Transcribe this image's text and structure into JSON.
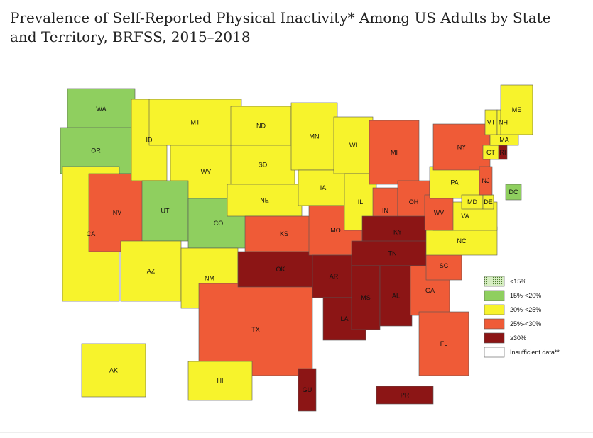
{
  "title": "Prevalence of Self-Reported Physical Inactivity* Among US Adults by State and Territory, BRFSS, 2015–2018",
  "legend": [
    {
      "label": "<15%",
      "color": "#d8efc4",
      "pattern": "dots"
    },
    {
      "label": "15%-<20%",
      "color": "#8fcf5f"
    },
    {
      "label": "20%-<25%",
      "color": "#f7f32c"
    },
    {
      "label": "25%-<30%",
      "color": "#ef5b37"
    },
    {
      "label": "≥30%",
      "color": "#8c1515"
    },
    {
      "label": "Insufficient data**",
      "color": "#ffffff"
    }
  ],
  "states": [
    {
      "label": "WA",
      "legend_index": 1
    },
    {
      "label": "OR",
      "legend_index": 1
    },
    {
      "label": "CA",
      "legend_index": 2
    },
    {
      "label": "NV",
      "legend_index": 3
    },
    {
      "label": "ID",
      "legend_index": 2
    },
    {
      "label": "MT",
      "legend_index": 2
    },
    {
      "label": "WY",
      "legend_index": 2
    },
    {
      "label": "UT",
      "legend_index": 1
    },
    {
      "label": "CO",
      "legend_index": 1
    },
    {
      "label": "AZ",
      "legend_index": 2
    },
    {
      "label": "NM",
      "legend_index": 2
    },
    {
      "label": "ND",
      "legend_index": 2
    },
    {
      "label": "SD",
      "legend_index": 2
    },
    {
      "label": "NE",
      "legend_index": 2
    },
    {
      "label": "KS",
      "legend_index": 3
    },
    {
      "label": "TX",
      "legend_index": 3
    },
    {
      "label": "OK",
      "legend_index": 4
    },
    {
      "label": "MN",
      "legend_index": 2
    },
    {
      "label": "IA",
      "legend_index": 2
    },
    {
      "label": "MO",
      "legend_index": 3
    },
    {
      "label": "AR",
      "legend_index": 4
    },
    {
      "label": "LA",
      "legend_index": 4
    },
    {
      "label": "WI",
      "legend_index": 2
    },
    {
      "label": "IL",
      "legend_index": 2
    },
    {
      "label": "MI",
      "legend_index": 3
    },
    {
      "label": "IN",
      "legend_index": 3
    },
    {
      "label": "OH",
      "legend_index": 3
    },
    {
      "label": "KY",
      "legend_index": 4
    },
    {
      "label": "TN",
      "legend_index": 4
    },
    {
      "label": "MS",
      "legend_index": 4
    },
    {
      "label": "AL",
      "legend_index": 4
    },
    {
      "label": "GA",
      "legend_index": 3
    },
    {
      "label": "FL",
      "legend_index": 3
    },
    {
      "label": "SC",
      "legend_index": 3
    },
    {
      "label": "NC",
      "legend_index": 2
    },
    {
      "label": "VA",
      "legend_index": 2
    },
    {
      "label": "WV",
      "legend_index": 3
    },
    {
      "label": "PA",
      "legend_index": 2
    },
    {
      "label": "NY",
      "legend_index": 3
    },
    {
      "label": "MD",
      "legend_index": 2
    },
    {
      "label": "DE",
      "legend_index": 2
    },
    {
      "label": "NJ",
      "legend_index": 3
    },
    {
      "label": "CT",
      "legend_index": 2
    },
    {
      "label": "RI",
      "legend_index": 4
    },
    {
      "label": "MA",
      "legend_index": 2
    },
    {
      "label": "VT",
      "legend_index": 2
    },
    {
      "label": "NH",
      "legend_index": 2
    },
    {
      "label": "ME",
      "legend_index": 2
    },
    {
      "label": "DC",
      "legend_index": 1
    },
    {
      "label": "AK",
      "legend_index": 2
    },
    {
      "label": "HI",
      "legend_index": 2
    },
    {
      "label": "PR",
      "legend_index": 4
    },
    {
      "label": "GU",
      "legend_index": 4
    }
  ]
}
